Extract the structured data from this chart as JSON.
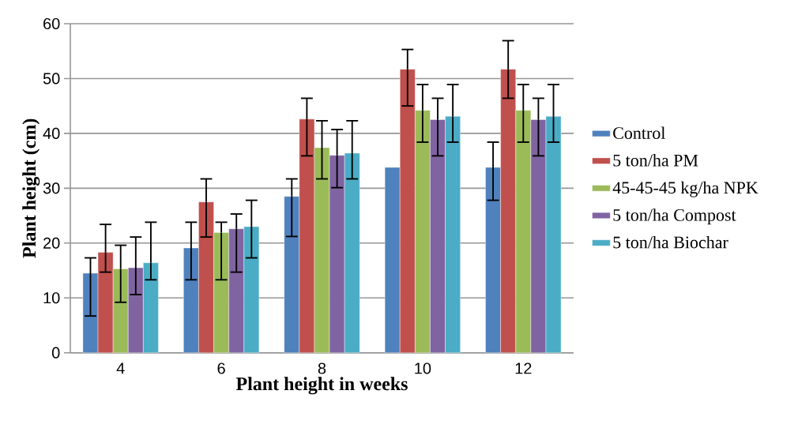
{
  "chart_data": {
    "type": "bar",
    "xlabel": "Plant height in weeks",
    "ylabel": "Plant height (cm)",
    "categories": [
      "4",
      "6",
      "8",
      "10",
      "12"
    ],
    "ylim": [
      0,
      60
    ],
    "yticks": [
      0,
      10,
      20,
      30,
      40,
      50,
      60
    ],
    "grid": "y",
    "legend": "right",
    "series": [
      {
        "name": "Control",
        "color": "#4f81bd",
        "values": [
          14.5,
          19.1,
          28.5,
          33.8,
          33.8
        ],
        "errors": [
          [
            6.7,
            17.3
          ],
          [
            13.3,
            23.8
          ],
          [
            21.2,
            31.7
          ],
          null,
          [
            27.8,
            38.4
          ]
        ]
      },
      {
        "name": "5 ton/ha PM",
        "color": "#c0504d",
        "values": [
          18.3,
          27.5,
          42.6,
          51.7,
          51.7
        ],
        "errors": [
          [
            14.7,
            23.4
          ],
          [
            21.1,
            31.7
          ],
          [
            35.9,
            46.4
          ],
          [
            45.0,
            55.3
          ],
          [
            46.4,
            56.9
          ]
        ]
      },
      {
        "name": "45-45-45 kg/ha NPK",
        "color": "#9bbb59",
        "values": [
          15.3,
          21.9,
          37.4,
          44.2,
          44.2
        ],
        "errors": [
          [
            9.2,
            19.6
          ],
          [
            13.3,
            23.8
          ],
          [
            31.7,
            42.3
          ],
          [
            38.4,
            48.9
          ],
          [
            38.4,
            48.9
          ]
        ]
      },
      {
        "name": "5 ton/ha Compost",
        "color": "#8064a2",
        "values": [
          15.5,
          22.6,
          36.0,
          42.5,
          42.5
        ],
        "errors": [
          [
            10.6,
            21.1
          ],
          [
            14.7,
            25.3
          ],
          [
            30.1,
            40.7
          ],
          [
            35.9,
            46.4
          ],
          [
            35.9,
            46.4
          ]
        ]
      },
      {
        "name": "5 ton/ha Biochar",
        "color": "#4bacc6",
        "values": [
          16.4,
          23.0,
          36.4,
          43.1,
          43.1
        ],
        "errors": [
          [
            13.3,
            23.8
          ],
          [
            17.3,
            27.8
          ],
          [
            31.7,
            42.3
          ],
          [
            38.4,
            48.9
          ],
          [
            38.4,
            48.9
          ]
        ]
      }
    ]
  }
}
